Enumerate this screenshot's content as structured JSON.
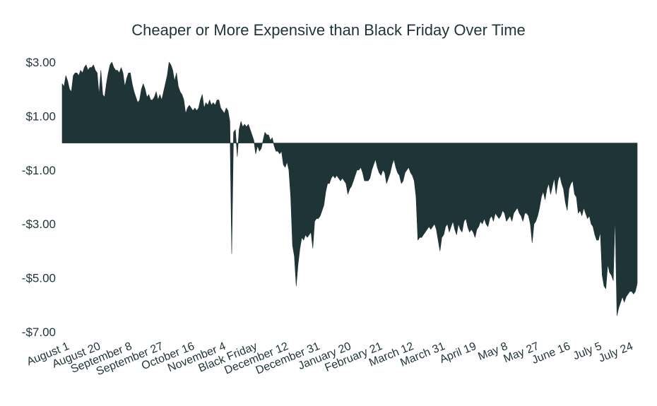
{
  "chart_data": {
    "type": "area",
    "title": "Cheaper or More Expensive than Black Friday Over Time",
    "xlabel": "",
    "ylabel": "",
    "ylim": [
      -7,
      3
    ],
    "yticks": [
      {
        "value": 3,
        "label": "$3.00"
      },
      {
        "value": 1,
        "label": "$1.00"
      },
      {
        "value": -1,
        "label": "-$1.00"
      },
      {
        "value": -3,
        "label": "-$3.00"
      },
      {
        "value": -5,
        "label": "-$5.00"
      },
      {
        "value": -7,
        "label": "-$7.00"
      }
    ],
    "xticks": [
      "August 1",
      "August 20",
      "September 8",
      "September 27",
      "October 16",
      "November 4",
      "Black Friday",
      "December 12",
      "December 31",
      "January 20",
      "February 21",
      "March 12",
      "March 31",
      "April 19",
      "May 8",
      "May 27",
      "June 16",
      "July 5",
      "July 24"
    ],
    "grid": false,
    "legend": "none",
    "colors": {
      "fill": "#1e3436",
      "text": "#1f3437"
    },
    "series": [
      {
        "values": [
          2.2,
          2.1,
          2.5,
          2.3,
          2.0,
          1.9,
          2.5,
          2.6,
          2.6,
          2.5,
          2.7,
          2.6,
          2.8,
          2.9,
          2.7,
          2.8,
          2.8,
          2.9,
          2.7,
          2.6,
          1.8,
          2.7,
          1.8,
          1.7,
          2.2,
          2.6,
          2.9,
          3.0,
          2.8,
          2.7,
          2.7,
          2.6,
          2.8,
          2.6,
          2.1,
          2.4,
          2.6,
          2.6,
          2.2,
          1.9,
          1.7,
          1.5,
          1.6,
          2.0,
          2.2,
          2.0,
          1.7,
          1.8,
          1.6,
          1.6,
          1.7,
          1.9,
          1.6,
          1.8,
          1.6,
          1.9,
          2.2,
          2.5,
          3.0,
          2.9,
          2.7,
          2.3,
          2.6,
          2.1,
          1.9,
          1.8,
          1.6,
          1.1,
          1.3,
          1.4,
          1.3,
          1.2,
          1.3,
          1.2,
          1.3,
          1.6,
          1.8,
          1.3,
          1.5,
          1.4,
          1.6,
          1.4,
          1.5,
          1.4,
          1.6,
          1.6,
          1.3,
          1.2,
          1.1,
          1.3,
          1.2,
          0.8,
          -4.1,
          0.4,
          0.5,
          -0.5,
          0.5,
          0.8,
          0.6,
          0.7,
          0.6,
          0.7,
          0.5,
          0.3,
          0.1,
          -0.4,
          -0.1,
          -0.3,
          -0.2,
          0.1,
          0.4,
          0.3,
          0.3,
          0.1,
          0.2,
          -0.1,
          -0.3,
          -0.3,
          -0.4,
          -0.3,
          -0.8,
          -0.9,
          -0.7,
          -1.0,
          -2.0,
          -3.8,
          -4.2,
          -5.3,
          -4.5,
          -3.9,
          -3.5,
          -3.6,
          -3.4,
          -3.5,
          -3.4,
          -3.3,
          -3.9,
          -2.9,
          -2.8,
          -2.8,
          -2.7,
          -2.5,
          -2.3,
          -1.8,
          -1.5,
          -1.5,
          -1.3,
          -1.2,
          -1.3,
          -1.2,
          -1.3,
          -1.4,
          -1.3,
          -1.4,
          -1.5,
          -1.9,
          -1.7,
          -1.6,
          -1.4,
          -1.2,
          -1.0,
          -1.0,
          -0.9,
          -1.1,
          -1.4,
          -1.4,
          -1.4,
          -1.3,
          -1.0,
          -0.8,
          -0.6,
          -0.9,
          -1.1,
          -1.2,
          -1.0,
          -1.1,
          -1.5,
          -1.3,
          -1.1,
          -0.8,
          -0.6,
          -0.9,
          -1.1,
          -1.2,
          -1.5,
          -1.4,
          -1.1,
          -1.0,
          -0.9,
          -1.1,
          -1.2,
          -1.4,
          -2.0,
          -3.6,
          -3.5,
          -3.5,
          -3.4,
          -3.3,
          -3.2,
          -3.1,
          -3.2,
          -3.1,
          -3.0,
          -3.2,
          -3.6,
          -4.0,
          -3.5,
          -3.4,
          -3.1,
          -3.0,
          -3.3,
          -3.1,
          -2.9,
          -3.2,
          -3.4,
          -3.0,
          -3.2,
          -3.3,
          -2.9,
          -2.8,
          -3.1,
          -3.3,
          -3.2,
          -3.3,
          -3.5,
          -3.2,
          -3.1,
          -2.9,
          -3.0,
          -2.8,
          -3.0,
          -3.1,
          -2.8,
          -2.7,
          -2.9,
          -2.6,
          -2.7,
          -2.8,
          -2.7,
          -2.5,
          -2.6,
          -2.9,
          -2.8,
          -2.7,
          -2.9,
          -2.6,
          -2.5,
          -2.4,
          -2.6,
          -2.7,
          -2.9,
          -2.6,
          -2.6,
          -2.7,
          -3.0,
          -3.7,
          -3.0,
          -2.9,
          -2.7,
          -2.4,
          -2.0,
          -1.8,
          -2.1,
          -1.7,
          -1.5,
          -1.9,
          -1.6,
          -1.3,
          -1.9,
          -1.4,
          -1.2,
          -1.5,
          -1.7,
          -2.2,
          -2.5,
          -1.7,
          -1.5,
          -1.4,
          -1.9,
          -2.0,
          -2.6,
          -2.5,
          -2.7,
          -2.4,
          -2.6,
          -2.8,
          -2.7,
          -3.0,
          -3.1,
          -3.4,
          -3.6,
          -3.6,
          -3.3,
          -4.9,
          -5.3,
          -5.4,
          -4.5,
          -4.8,
          -4.9,
          -5.1,
          -2.7,
          -6.4,
          -6.1,
          -5.9,
          -5.7,
          -5.9,
          -5.7,
          -5.6,
          -5.5,
          -5.5,
          -5.6,
          -5.5,
          -5.2
        ]
      }
    ]
  }
}
